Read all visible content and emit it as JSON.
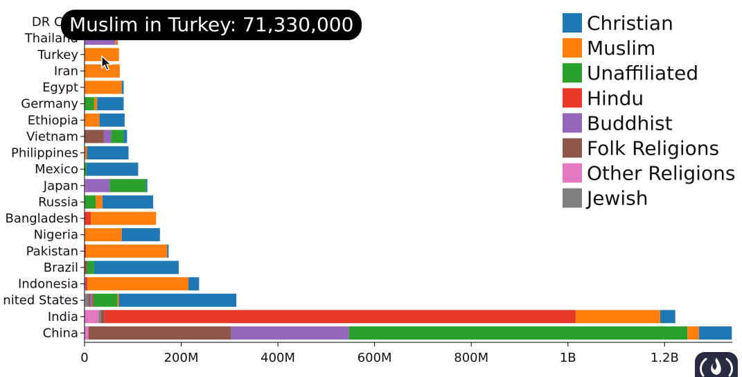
{
  "chart_data": {
    "type": "bar",
    "orientation": "horizontal",
    "stacked": true,
    "title": "",
    "xlabel": "",
    "ylabel": "",
    "xlim": [
      0,
      1340000000
    ],
    "x_ticks": [
      {
        "value": 0,
        "label": "0"
      },
      {
        "value": 200000000,
        "label": "200M"
      },
      {
        "value": 400000000,
        "label": "400M"
      },
      {
        "value": 600000000,
        "label": "600M"
      },
      {
        "value": 800000000,
        "label": "800M"
      },
      {
        "value": 1000000000,
        "label": "1B"
      },
      {
        "value": 1200000000,
        "label": "1.2B"
      }
    ],
    "categories": [
      "DR Con",
      "Thailand",
      "Turkey",
      "Iran",
      "Egypt",
      "Germany",
      "Ethiopia",
      "Vietnam",
      "Philippines",
      "Mexico",
      "Japan",
      "Russia",
      "Bangladesh",
      "Nigeria",
      "Pakistan",
      "Brazil",
      "Indonesia",
      "nited States",
      "India",
      "China"
    ],
    "series": [
      {
        "name": "Other Religions",
        "color": "#e377c2",
        "values": [
          0,
          0,
          0,
          0,
          0,
          0,
          0,
          0,
          0,
          0,
          2000000,
          0,
          0,
          0,
          0,
          0,
          0,
          2000000,
          29000000,
          8000000
        ]
      },
      {
        "name": "Jewish",
        "color": "#7f7f7f",
        "values": [
          0,
          0,
          0,
          0,
          0,
          0,
          0,
          0,
          0,
          0,
          0,
          0,
          0,
          0,
          0,
          0,
          0,
          6000000,
          5000000,
          0
        ]
      },
      {
        "name": "Folk Religions",
        "color": "#8c564b",
        "values": [
          0,
          0,
          0,
          0,
          0,
          0,
          0,
          40000000,
          0,
          0,
          0,
          0,
          0,
          0,
          0,
          5000000,
          0,
          4000000,
          7000000,
          295000000
        ]
      },
      {
        "name": "Buddhist",
        "color": "#9467bd",
        "values": [
          0,
          64000000,
          0,
          0,
          0,
          0,
          0,
          15000000,
          0,
          0,
          50000000,
          0,
          0,
          0,
          0,
          0,
          2000000,
          4000000,
          0,
          244000000
        ]
      },
      {
        "name": "Hindu",
        "color": "#e6392a",
        "values": [
          0,
          0,
          0,
          0,
          0,
          0,
          0,
          0,
          0,
          0,
          0,
          0,
          13000000,
          0,
          3000000,
          0,
          4000000,
          2000000,
          975000000,
          0
        ]
      },
      {
        "name": "Unaffiliated",
        "color": "#2ca02c",
        "values": [
          0,
          0,
          0,
          0,
          0,
          20000000,
          0,
          26000000,
          0,
          4000000,
          75000000,
          23000000,
          0,
          0,
          0,
          15000000,
          0,
          50000000,
          0,
          700000000
        ]
      },
      {
        "name": "Muslim",
        "color": "#ff7f0e",
        "values": [
          0,
          4000000,
          71330000,
          73000000,
          77000000,
          6000000,
          31000000,
          0,
          5000000,
          0,
          0,
          14000000,
          135000000,
          77000000,
          168000000,
          0,
          209000000,
          3000000,
          175000000,
          24000000
        ]
      },
      {
        "name": "Christian",
        "color": "#1f77b4",
        "values": [
          0,
          1000000,
          0,
          0,
          4000000,
          55000000,
          52000000,
          7000000,
          86000000,
          107000000,
          3000000,
          105000000,
          0,
          79000000,
          3000000,
          175000000,
          22000000,
          243000000,
          31000000,
          68000000
        ]
      }
    ],
    "legend": {
      "placement": "top-right",
      "entries": [
        {
          "name": "Christian",
          "color": "#1f77b4"
        },
        {
          "name": "Muslim",
          "color": "#ff7f0e"
        },
        {
          "name": "Unaffiliated",
          "color": "#2ca02c"
        },
        {
          "name": "Hindu",
          "color": "#e6392a"
        },
        {
          "name": "Buddhist",
          "color": "#9467bd"
        },
        {
          "name": "Folk Religions",
          "color": "#8c564b"
        },
        {
          "name": "Other Religions",
          "color": "#e377c2"
        },
        {
          "name": "Jewish",
          "color": "#7f7f7f"
        }
      ]
    },
    "grid": false
  },
  "tooltip": {
    "text": "Muslim in Turkey: 71,330,000"
  },
  "icons": {
    "cursor": "mouse-pointer-icon",
    "badge": "freecodecamp-logo-icon"
  }
}
